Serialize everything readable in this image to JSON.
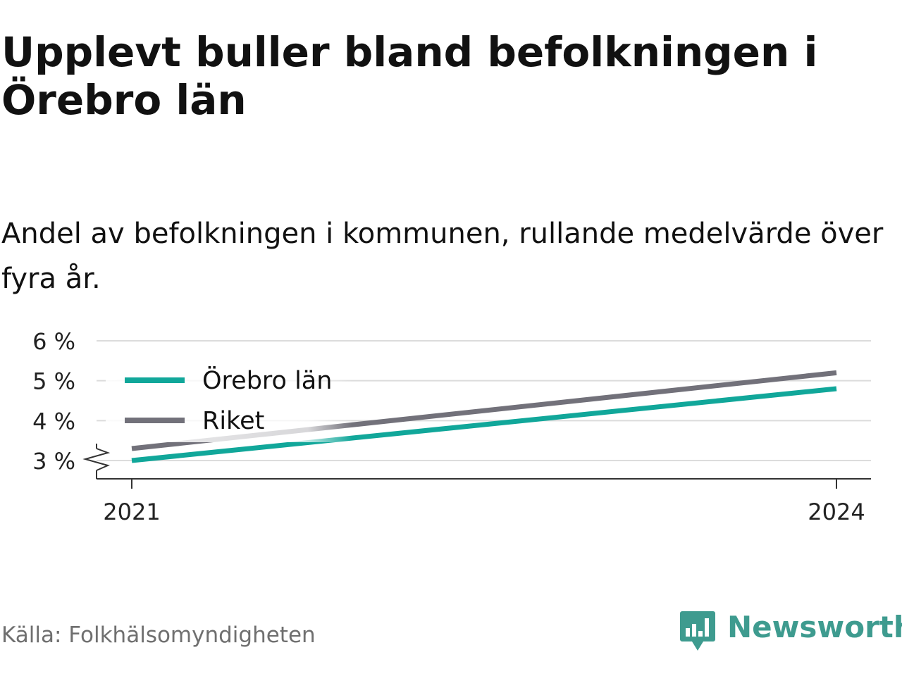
{
  "title": "Upplevt buller bland befolkningen i Örebro län",
  "subtitle": "Andel av befolkningen i kommunen, rullande medelvärde över fyra år.",
  "source": "Källa: Folkhälsomyndigheten",
  "logo_text": "Newsworthy",
  "colors": {
    "orebro": "#11a79a",
    "riket": "#72717a",
    "grid": "#dcdcdc",
    "axis": "#333333",
    "brand": "#3e9b8f"
  },
  "chart_data": {
    "type": "line",
    "x": [
      2021,
      2024
    ],
    "x_tick_labels": [
      "2021",
      "2024"
    ],
    "y_ticks": [
      3,
      4,
      5,
      6
    ],
    "y_tick_labels": [
      "3 %",
      "4 %",
      "5 %",
      "6 %"
    ],
    "ylim": [
      3,
      6
    ],
    "y_axis_break": true,
    "grid": true,
    "legend_position": "top-left",
    "series": [
      {
        "name": "Örebro län",
        "values": [
          3.0,
          4.8
        ]
      },
      {
        "name": "Riket",
        "values": [
          3.3,
          5.2
        ]
      }
    ]
  }
}
